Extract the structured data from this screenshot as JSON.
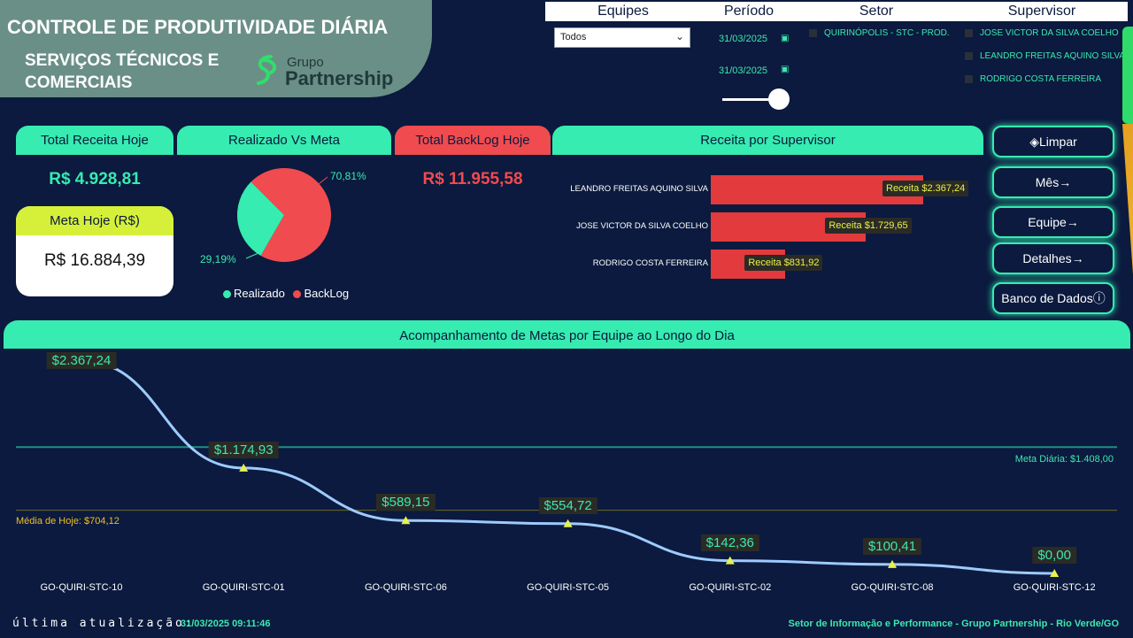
{
  "header": {
    "title": "CONTROLE DE PRODUTIVIDADE DIÁRIA",
    "subtitle": "SERVIÇOS TÉCNICOS E COMERCIAIS",
    "logo_top": "Grupo",
    "logo_bottom": "Partnership"
  },
  "filters": {
    "equipes_label": "Equipes",
    "periodo_label": "Período",
    "setor_label": "Setor",
    "supervisor_label": "Supervisor",
    "equipes_value": "Todos",
    "date_start": "31/03/2025",
    "date_end": "31/03/2025",
    "setor_items": [
      "QUIRINÓPOLIS - STC - PROD."
    ],
    "supervisor_items": [
      "JOSE VICTOR DA SILVA COELHO",
      "LEANDRO FREITAS AQUINO SILVA",
      "RODRIGO COSTA FERREIRA"
    ]
  },
  "kpis": {
    "total_receita_label": "Total Receita Hoje",
    "total_receita_value": "R$ 4.928,81",
    "meta_label": "Meta Hoje (R$)",
    "meta_value": "R$ 16.884,39",
    "realizado_label": "Realizado Vs Meta",
    "backlog_label": "Total BackLog Hoje",
    "backlog_value": "R$ 11.955,58"
  },
  "pie": {
    "realizado_pct": "29,19%",
    "backlog_pct": "70,81%",
    "legend_realizado": "Realizado",
    "legend_backlog": "BackLog",
    "color_realizado": "#36ecb0",
    "color_backlog": "#f04b4f"
  },
  "supervisor_chart": {
    "title": "Receita por Supervisor",
    "tip_prefix": "Receita",
    "rows": [
      {
        "name": "LEANDRO FREITAS AQUINO SILVA",
        "value": 2367.24,
        "label": "$2.367,24"
      },
      {
        "name": "JOSE VICTOR DA SILVA COELHO",
        "value": 1729.65,
        "label": "$1.729,65"
      },
      {
        "name": "RODRIGO COSTA FERREIRA",
        "value": 831.92,
        "label": "$831,92"
      }
    ]
  },
  "nav": {
    "limpar": "Limpar",
    "mes": "Mês",
    "equipe": "Equipe",
    "detalhes": "Detalhes",
    "banco": "Banco de Dados"
  },
  "chart_data": {
    "type": "line",
    "title": "Acompanhamento de Metas por  Equipe ao Longo do Dia",
    "categories": [
      "GO-QUIRI-STC-10",
      "GO-QUIRI-STC-01",
      "GO-QUIRI-STC-06",
      "GO-QUIRI-STC-05",
      "GO-QUIRI-STC-02",
      "GO-QUIRI-STC-08",
      "GO-QUIRI-STC-12"
    ],
    "values": [
      2367.24,
      1174.93,
      589.15,
      554.72,
      142.36,
      100.41,
      0
    ],
    "labels": [
      "$2.367,24",
      "$1.174,93",
      "$589,15",
      "$554,72",
      "$142,36",
      "$100,41",
      "$0,00"
    ],
    "meta_diaria": 1408.0,
    "meta_diaria_label": "Meta Diária: $1.408,00",
    "media_hoje": 704.12,
    "media_hoje_label": "Média de Hoje: $704,12",
    "ylim": [
      0,
      2367.24
    ],
    "line_color": "#9ecbff",
    "marker_color": "#e8f24a"
  },
  "footer": {
    "updated_label": "última atualização:",
    "updated_value": "31/03/2025 09:11:46",
    "credits": "Setor de Informação e Performance - Grupo Partnership - Rio Verde/GO"
  }
}
